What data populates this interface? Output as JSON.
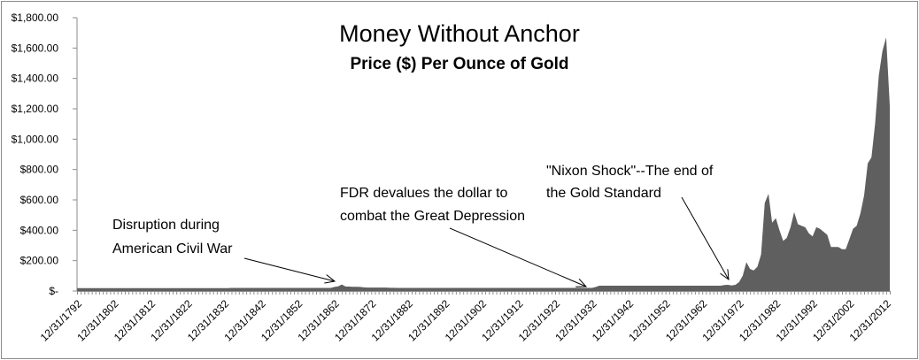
{
  "chart_data": {
    "type": "area",
    "title": "Money Without Anchor",
    "subtitle": "Price ($) Per Ounce of Gold",
    "xlabel": "",
    "ylabel": "",
    "x_start_year": 1792,
    "x_end_year": 2013,
    "ylim": [
      0,
      1800
    ],
    "y_ticks": [
      0,
      200,
      400,
      600,
      800,
      1000,
      1200,
      1400,
      1600,
      1800
    ],
    "y_tick_labels": [
      "$-",
      "$200.00",
      "$400.00",
      "$600.00",
      "$800.00",
      "$1,000.00",
      "$1,200.00",
      "$1,400.00",
      "$1,600.00",
      "$1,800.00"
    ],
    "x_tick_labels": [
      "12/31/1792",
      "12/31/1802",
      "12/31/1812",
      "12/31/1822",
      "12/31/1832",
      "12/31/1842",
      "12/31/1852",
      "12/31/1862",
      "12/31/1872",
      "12/31/1882",
      "12/31/1892",
      "12/31/1902",
      "12/31/1912",
      "12/31/1922",
      "12/31/1932",
      "12/31/1942",
      "12/31/1952",
      "12/31/1962",
      "12/31/1972",
      "12/31/1982",
      "12/31/1992",
      "12/31/2002",
      "12/31/2012"
    ],
    "series": [
      {
        "name": "Price per ounce of gold",
        "color": "#5f5f5f",
        "values": [
          19.39,
          19.39,
          19.39,
          19.39,
          19.39,
          19.39,
          19.39,
          19.39,
          19.39,
          19.39,
          19.39,
          19.39,
          19.39,
          19.39,
          19.39,
          19.39,
          19.39,
          19.39,
          19.39,
          19.39,
          19.39,
          19.39,
          19.39,
          19.39,
          19.39,
          19.39,
          19.39,
          19.39,
          19.39,
          19.39,
          19.39,
          19.39,
          19.39,
          19.39,
          19.39,
          19.39,
          19.39,
          19.39,
          19.39,
          19.39,
          19.39,
          19.39,
          20.67,
          20.67,
          20.67,
          20.67,
          20.67,
          20.67,
          20.67,
          20.67,
          20.67,
          20.67,
          20.67,
          20.67,
          20.67,
          20.67,
          20.67,
          20.67,
          20.67,
          20.67,
          20.67,
          20.67,
          20.67,
          20.67,
          20.67,
          20.67,
          20.67,
          20.67,
          20.67,
          20.67,
          27,
          31,
          43,
          30,
          29,
          28,
          28,
          27,
          24,
          23,
          23,
          23,
          23,
          23,
          23,
          21,
          21,
          20.67,
          20.67,
          20.67,
          20.67,
          20.67,
          20.67,
          20.67,
          20.67,
          20.67,
          20.67,
          20.67,
          20.67,
          20.67,
          20.67,
          20.67,
          20.67,
          20.67,
          20.67,
          20.67,
          20.67,
          20.67,
          20.67,
          20.67,
          20.67,
          20.67,
          20.67,
          20.67,
          20.67,
          20.67,
          20.67,
          20.67,
          20.67,
          20.67,
          20.67,
          20.67,
          20.67,
          20.67,
          20.67,
          20.67,
          20.67,
          20.67,
          20.67,
          20.67,
          20.67,
          20.67,
          20.67,
          20.67,
          20.67,
          20.67,
          20.67,
          20.67,
          20.67,
          20.67,
          20.67,
          26,
          35,
          35,
          35,
          35,
          35,
          35,
          35,
          35,
          35,
          35,
          35,
          35,
          35,
          35,
          35,
          35,
          35,
          35,
          35,
          35,
          35,
          35,
          35,
          35,
          35,
          35,
          35,
          35,
          35,
          35,
          35,
          35,
          35,
          35,
          39,
          41,
          36,
          41,
          58,
          100,
          190,
          145,
          135,
          160,
          240,
          580,
          640,
          450,
          480,
          400,
          330,
          350,
          420,
          520,
          440,
          430,
          420,
          380,
          360,
          420,
          410,
          390,
          370,
          290,
          290,
          290,
          275,
          275,
          340,
          410,
          430,
          510,
          630,
          840,
          880,
          1100,
          1420,
          1580,
          1670,
          1220
        ]
      }
    ],
    "annotations": [
      {
        "lines": [
          "Disruption during",
          "American Civil War"
        ],
        "target_year": 1862
      },
      {
        "lines": [
          "FDR devalues the dollar to",
          "combat the Great Depression"
        ],
        "target_year": 1933
      },
      {
        "lines": [
          "\"Nixon Shock\"--The end of",
          "the Gold Standard"
        ],
        "target_year": 1970
      }
    ],
    "grid": false,
    "legend": "none"
  }
}
